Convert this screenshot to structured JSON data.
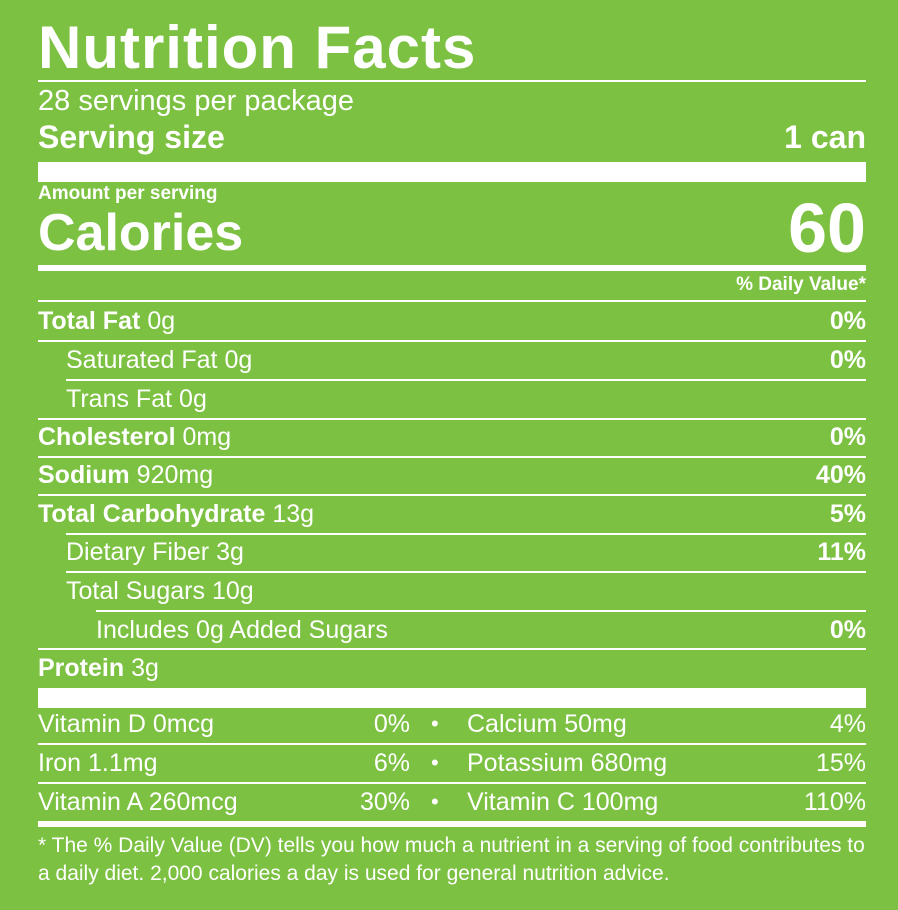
{
  "label": {
    "title": "Nutrition Facts",
    "servings_per_package": "28 servings per package",
    "serving_size_label": "Serving size",
    "serving_size_value": "1 can",
    "amount_per_serving": "Amount per serving",
    "calories_label": "Calories",
    "calories_value": "60",
    "daily_value_header": "% Daily Value*"
  },
  "nutrients": [
    {
      "name": "Total Fat",
      "amount": "0g",
      "dv": "0%"
    },
    {
      "name": "Saturated Fat",
      "amount": "0g",
      "dv": "0%"
    },
    {
      "name": "Trans Fat",
      "amount": "0g",
      "dv": ""
    },
    {
      "name": "Cholesterol",
      "amount": "0mg",
      "dv": "0%"
    },
    {
      "name": "Sodium",
      "amount": "920mg",
      "dv": "40%"
    },
    {
      "name": "Total Carbohydrate",
      "amount": "13g",
      "dv": "5%"
    },
    {
      "name": "Dietary Fiber",
      "amount": "3g",
      "dv": "11%"
    },
    {
      "name": "Total Sugars",
      "amount": "10g",
      "dv": ""
    },
    {
      "name": "Includes 0g Added Sugars",
      "amount": "",
      "dv": "0%"
    },
    {
      "name": "Protein",
      "amount": "3g",
      "dv": ""
    }
  ],
  "vitamins": [
    {
      "left_name": "Vitamin D 0mcg",
      "left_dv": "0%",
      "right_name": "Calcium 50mg",
      "right_dv": "4%"
    },
    {
      "left_name": "Iron 1.1mg",
      "left_dv": "6%",
      "right_name": "Potassium 680mg",
      "right_dv": "15%"
    },
    {
      "left_name": "Vitamin A 260mcg",
      "left_dv": "30%",
      "right_name": "Vitamin C 100mg",
      "right_dv": "110%"
    }
  ],
  "separator": "•",
  "footnote": "* The % Daily Value (DV) tells you how much a nutrient in a serving of food contributes to a daily diet. 2,000 calories a day is used for general nutrition advice.",
  "colors": {
    "background": "#7cc142",
    "text": "#ffffff"
  }
}
